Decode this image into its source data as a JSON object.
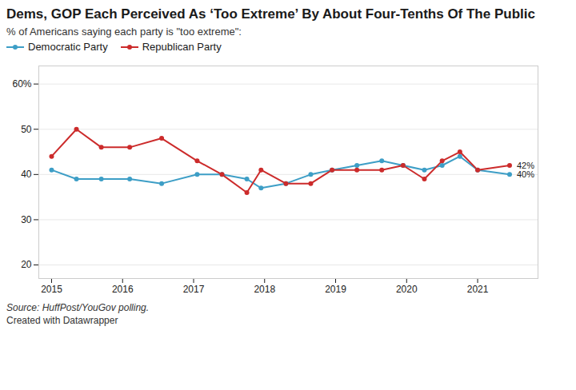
{
  "chart_data": {
    "type": "line",
    "title": "Dems, GOP Each Perceived As ‘Too Extreme’ By About Four-Tenths Of The Public",
    "subtitle": "% of Americans saying each party is \"too extreme\":",
    "caption": [
      "Source: HuffPost/YouGov polling.",
      "Created with Datawrapper"
    ],
    "x": [
      2015.0,
      2015.35,
      2015.7,
      2016.1,
      2016.55,
      2017.05,
      2017.4,
      2017.75,
      2017.95,
      2018.3,
      2018.65,
      2018.95,
      2019.3,
      2019.65,
      2019.95,
      2020.25,
      2020.5,
      2020.75,
      2021.0,
      2021.45
    ],
    "series": [
      {
        "name": "Democratic Party",
        "color": "#3d9ec6",
        "marker": "circle",
        "values": [
          41,
          39,
          39,
          39,
          38,
          40,
          40,
          39,
          37,
          38,
          40,
          41,
          42,
          43,
          42,
          41,
          42,
          44,
          41,
          40
        ]
      },
      {
        "name": "Republican Party",
        "color": "#cc2b2b",
        "marker": "circle",
        "values": [
          44,
          50,
          46,
          46,
          48,
          43,
          40,
          36,
          41,
          38,
          38,
          41,
          41,
          41,
          42,
          39,
          43,
          45,
          41,
          42
        ]
      }
    ],
    "xlim": [
      2014.82,
      2021.85
    ],
    "xticks": [
      2015,
      2016,
      2017,
      2018,
      2019,
      2020,
      2021
    ],
    "ylim": [
      17,
      64
    ],
    "yticks": [
      20,
      30,
      40,
      50,
      {
        "value": 60,
        "label": "60%"
      }
    ],
    "grid": true,
    "legend": "upper left",
    "annotations": [
      {
        "text": "42%",
        "x": 2021.45,
        "y": 42
      },
      {
        "text": "40%",
        "x": 2021.45,
        "y": 40
      }
    ]
  }
}
